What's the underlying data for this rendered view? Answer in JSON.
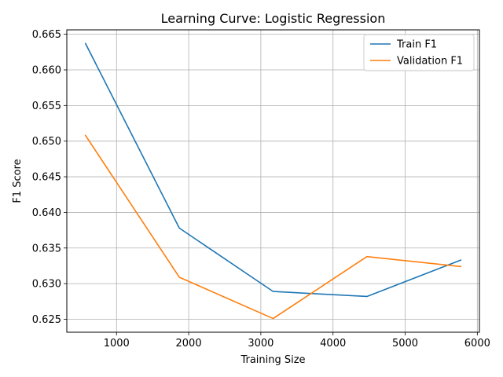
{
  "chart_data": {
    "type": "line",
    "title": "Learning Curve: Logistic Regression",
    "xlabel": "Training Size",
    "ylabel": "F1 Score",
    "x": [
      570,
      1870,
      3170,
      4470,
      5770
    ],
    "series": [
      {
        "name": "Train F1",
        "color": "#1f77b4",
        "values": [
          0.6637,
          0.6378,
          0.6289,
          0.6282,
          0.6333
        ]
      },
      {
        "name": "Validation F1",
        "color": "#ff7f0e",
        "values": [
          0.6508,
          0.6309,
          0.6251,
          0.6338,
          0.6324
        ]
      }
    ],
    "xlim": [
      311,
      6029
    ],
    "ylim": [
      0.62318,
      0.66562
    ],
    "xticks": [
      1000,
      2000,
      3000,
      4000,
      5000,
      6000
    ],
    "xtick_labels": [
      "1000",
      "2000",
      "3000",
      "4000",
      "5000",
      "6000"
    ],
    "yticks": [
      0.625,
      0.63,
      0.635,
      0.64,
      0.645,
      0.65,
      0.655,
      0.66,
      0.665
    ],
    "ytick_labels": [
      "0.625",
      "0.630",
      "0.635",
      "0.640",
      "0.645",
      "0.650",
      "0.655",
      "0.660",
      "0.665"
    ],
    "grid": true,
    "legend_position": "upper right"
  }
}
